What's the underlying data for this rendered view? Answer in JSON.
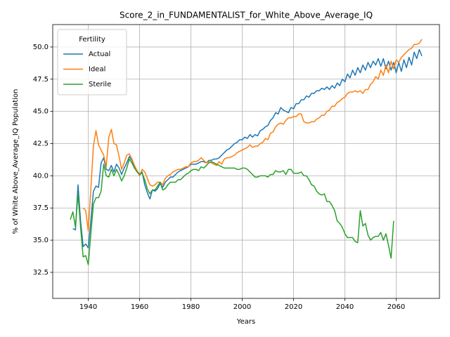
{
  "chart_data": {
    "type": "line",
    "title": "Score_2_in_FUNDAMENTALIST_for_White_Above_Average_IQ",
    "x_label": "Years",
    "y_label": "% of White Above_Average_IQ Population",
    "legend_title": "Fertility",
    "legend": "upper left",
    "grid": true,
    "xlim": [
      1926.15,
      2076.85
    ],
    "xticks": [
      1940,
      1960,
      1980,
      2000,
      2020,
      2040,
      2060
    ],
    "ylim": [
      30.48,
      51.74
    ],
    "yticks": [
      32.5,
      {
        "value": 35,
        "label": "35.0"
      },
      37.5,
      {
        "value": 40,
        "label": "40.0"
      },
      42.5,
      {
        "value": 45,
        "label": "45.0"
      },
      47.5,
      {
        "value": 50,
        "label": "50.0"
      }
    ],
    "x": [
      1933,
      1934,
      1935,
      1936,
      1937,
      1938,
      1939,
      1940,
      1941,
      1942,
      1943,
      1944,
      1945,
      1946,
      1947,
      1948,
      1949,
      1950,
      1951,
      1952,
      1953,
      1954,
      1955,
      1956,
      1957,
      1958,
      1959,
      1960,
      1961,
      1962,
      1963,
      1964,
      1965,
      1966,
      1967,
      1968,
      1969,
      1970,
      1971,
      1972,
      1973,
      1974,
      1975,
      1976,
      1977,
      1978,
      1979,
      1980,
      1981,
      1982,
      1983,
      1984,
      1985,
      1986,
      1987,
      1988,
      1989,
      1990,
      1991,
      1992,
      1993,
      1994,
      1995,
      1996,
      1997,
      1998,
      1999,
      2000,
      2001,
      2002,
      2003,
      2004,
      2005,
      2006,
      2007,
      2008,
      2009,
      2010,
      2011,
      2012,
      2013,
      2014,
      2015,
      2016,
      2017,
      2018,
      2019,
      2020,
      2021,
      2022,
      2023,
      2024,
      2025,
      2026,
      2027,
      2028,
      2029,
      2030,
      2031,
      2032,
      2033,
      2034,
      2035,
      2036,
      2037,
      2038,
      2039,
      2040,
      2041,
      2042,
      2043,
      2044,
      2045,
      2046,
      2047,
      2048,
      2049,
      2050,
      2051,
      2052,
      2053,
      2054,
      2055,
      2056,
      2057,
      2058,
      2059,
      2060,
      2061,
      2062,
      2063,
      2064,
      2065,
      2066,
      2067,
      2068,
      2069,
      2070
    ],
    "series": [
      {
        "name": "Actual",
        "color": "#1f77b4",
        "values": [
          null,
          35.9,
          35.8,
          39.3,
          36.5,
          34.5,
          34.7,
          34.4,
          36.5,
          38.8,
          39.2,
          39.1,
          41.0,
          41.4,
          40.5,
          40.4,
          40.8,
          40.3,
          40.9,
          40.6,
          40.1,
          40.6,
          41.0,
          41.5,
          41.2,
          40.7,
          40.4,
          40.1,
          40.3,
          39.3,
          38.7,
          38.2,
          38.9,
          38.8,
          39.0,
          39.4,
          39.1,
          39.5,
          39.7,
          39.9,
          39.9,
          40.1,
          40.3,
          40.4,
          40.5,
          40.6,
          40.7,
          40.9,
          40.9,
          40.9,
          41.0,
          41.1,
          41.1,
          41.0,
          41.2,
          41.2,
          41.3,
          41.3,
          41.4,
          41.6,
          41.8,
          42.0,
          42.1,
          42.3,
          42.5,
          42.6,
          42.8,
          42.8,
          43.0,
          42.9,
          43.2,
          43.0,
          43.2,
          43.1,
          43.5,
          43.6,
          43.8,
          43.9,
          44.3,
          44.5,
          44.9,
          44.8,
          45.3,
          45.1,
          45.0,
          44.9,
          45.3,
          45.2,
          45.6,
          45.6,
          45.9,
          45.9,
          46.2,
          46.1,
          46.4,
          46.4,
          46.6,
          46.6,
          46.8,
          46.7,
          46.9,
          46.7,
          47.0,
          46.8,
          47.2,
          47.0,
          47.5,
          47.3,
          47.9,
          47.6,
          48.2,
          47.8,
          48.4,
          48.0,
          48.6,
          48.2,
          48.8,
          48.4,
          48.9,
          48.6,
          49.1,
          48.5,
          49.1,
          48.3,
          48.9,
          48.2,
          48.8,
          48.0,
          48.8,
          48.1,
          49.0,
          48.4,
          49.2,
          48.6,
          49.6,
          49.1,
          49.8,
          49.3
        ]
      },
      {
        "name": "Ideal",
        "color": "#ff7f0e",
        "values": [
          null,
          null,
          null,
          null,
          null,
          37.5,
          37.3,
          35.7,
          39.0,
          42.3,
          43.5,
          42.4,
          42.0,
          41.6,
          40.7,
          43.0,
          43.6,
          42.5,
          42.4,
          41.5,
          40.5,
          41.0,
          41.6,
          41.7,
          41.3,
          40.8,
          40.4,
          40.0,
          40.5,
          40.3,
          39.8,
          39.3,
          39.2,
          39.3,
          39.5,
          39.5,
          39.3,
          39.8,
          40.0,
          40.1,
          40.3,
          40.4,
          40.5,
          40.5,
          40.6,
          40.7,
          40.7,
          41.0,
          41.1,
          41.1,
          41.2,
          41.4,
          41.2,
          41.0,
          41.1,
          41.0,
          40.9,
          40.8,
          41.1,
          40.9,
          41.3,
          41.4,
          41.4,
          41.5,
          41.6,
          41.8,
          41.9,
          42.0,
          42.1,
          42.2,
          42.4,
          42.2,
          42.3,
          42.3,
          42.5,
          42.6,
          42.9,
          42.8,
          43.3,
          43.4,
          43.8,
          44.0,
          44.1,
          44.0,
          44.3,
          44.5,
          44.5,
          44.6,
          44.6,
          44.8,
          44.8,
          44.2,
          44.1,
          44.1,
          44.2,
          44.2,
          44.4,
          44.5,
          44.7,
          44.7,
          45.0,
          45.1,
          45.4,
          45.4,
          45.7,
          45.8,
          46.0,
          46.1,
          46.4,
          46.5,
          46.5,
          46.6,
          46.5,
          46.6,
          46.4,
          46.7,
          46.7,
          47.1,
          47.3,
          47.7,
          47.5,
          48.2,
          47.8,
          48.6,
          48.0,
          48.9,
          48.3,
          49.0,
          48.8,
          49.2,
          49.4,
          49.6,
          49.8,
          49.9,
          50.2,
          50.2,
          50.3,
          50.6
        ]
      },
      {
        "name": "Sterile",
        "color": "#2ca02c",
        "values": [
          36.6,
          37.2,
          36.0,
          38.6,
          36.0,
          33.7,
          33.8,
          33.1,
          35.5,
          37.8,
          38.3,
          38.3,
          38.8,
          40.9,
          40.0,
          39.9,
          40.5,
          40.0,
          40.5,
          40.1,
          39.6,
          40.0,
          40.6,
          41.3,
          41.0,
          40.6,
          40.3,
          40.1,
          40.2,
          39.7,
          39.0,
          38.6,
          38.9,
          38.9,
          39.2,
          39.5,
          38.9,
          39.0,
          39.3,
          39.5,
          39.5,
          39.5,
          39.7,
          39.7,
          39.9,
          40.1,
          40.2,
          40.4,
          40.5,
          40.5,
          40.4,
          40.7,
          40.6,
          40.8,
          41.0,
          41.1,
          41.0,
          40.9,
          40.8,
          40.7,
          40.6,
          40.6,
          40.6,
          40.6,
          40.6,
          40.5,
          40.5,
          40.6,
          40.6,
          40.5,
          40.3,
          40.1,
          39.9,
          39.9,
          40.0,
          40.0,
          40.0,
          39.9,
          40.1,
          40.1,
          40.4,
          40.3,
          40.3,
          40.4,
          40.1,
          40.5,
          40.5,
          40.2,
          40.2,
          40.2,
          40.3,
          40.0,
          40.0,
          39.7,
          39.3,
          39.2,
          38.8,
          38.6,
          38.5,
          38.6,
          38.0,
          38.0,
          37.7,
          37.3,
          36.5,
          36.3,
          36.0,
          35.5,
          35.2,
          35.2,
          35.2,
          34.9,
          34.8,
          37.3,
          36.1,
          36.3,
          35.4,
          35.0,
          35.2,
          35.3,
          35.3,
          35.6,
          35.0,
          35.5,
          34.6,
          33.6,
          36.5,
          null,
          null,
          null,
          null,
          null,
          null,
          null,
          null,
          null,
          null,
          null
        ]
      }
    ]
  }
}
